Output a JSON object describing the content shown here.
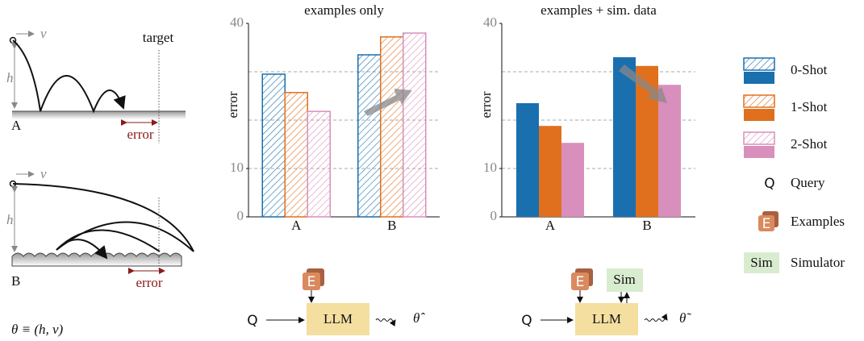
{
  "chart_data": [
    {
      "type": "bar",
      "title": "examples only",
      "ylabel": "error",
      "hatched": true,
      "categories": [
        "A",
        "B"
      ],
      "series": [
        {
          "name": "0-Shot",
          "color": "#1a6faf",
          "values": [
            29.5,
            33.5
          ]
        },
        {
          "name": "1-Shot",
          "color": "#e0701e",
          "values": [
            25.7,
            37.2
          ]
        },
        {
          "name": "2-Shot",
          "color": "#d98fbb",
          "values": [
            21.8,
            38
          ]
        }
      ],
      "ylim": [
        0,
        40
      ],
      "yticks": [
        0,
        10,
        40
      ],
      "gridlines": [
        10,
        20,
        30
      ]
    },
    {
      "type": "bar",
      "title": "examples + sim. data",
      "ylabel": "error",
      "hatched": false,
      "categories": [
        "A",
        "B"
      ],
      "series": [
        {
          "color": "#1a6faf",
          "values": [
            23.5,
            33
          ]
        },
        {
          "color": "#e0701e",
          "values": [
            18.8,
            31.2
          ]
        },
        {
          "color": "#d98fbb",
          "values": [
            15.3,
            27.3
          ]
        }
      ],
      "ylim": [
        0,
        40
      ],
      "yticks": [
        0,
        10,
        40
      ],
      "gridlines": [
        10,
        20,
        30
      ]
    }
  ],
  "scenario": {
    "v_a": "v",
    "h_a": "h",
    "target": "target",
    "label_a": "A",
    "error_a": "error",
    "v_b": "v",
    "h_b": "h",
    "label_b": "B",
    "error_b": "error",
    "theta": "θ ≡ (h, v)"
  },
  "legend": {
    "query_icon": "Q",
    "query": "Query",
    "examples_icon": "E",
    "examples": "Examples",
    "sim_icon": "Sim",
    "simulator": "Simulator"
  },
  "pipeline_1": {
    "examples": "E",
    "query": "Q",
    "llm": "LLM",
    "output": "θ̂"
  },
  "pipeline_2": {
    "examples": "E",
    "sim": "Sim",
    "query": "Q",
    "llm": "LLM",
    "output": "θ̃"
  }
}
